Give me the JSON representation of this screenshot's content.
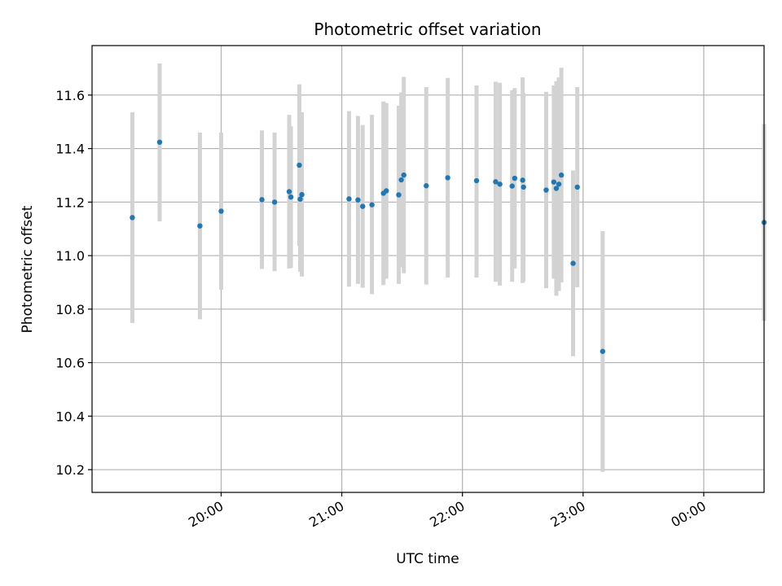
{
  "chart_data": {
    "type": "scatter",
    "title": "Photometric offset variation",
    "xlabel": "UTC time",
    "ylabel": "Photometric offset",
    "x_unit": "hours since 19:00 UTC",
    "xlim": [
      -0.07,
      5.5
    ],
    "ylim": [
      10.115,
      11.785
    ],
    "x_ticks": [
      {
        "value": 1.0,
        "label": "20:00"
      },
      {
        "value": 2.0,
        "label": "21:00"
      },
      {
        "value": 3.0,
        "label": "22:00"
      },
      {
        "value": 4.0,
        "label": "23:00"
      },
      {
        "value": 5.0,
        "label": "00:00"
      }
    ],
    "y_ticks": [
      {
        "value": 10.2,
        "label": "10.2"
      },
      {
        "value": 10.4,
        "label": "10.4"
      },
      {
        "value": 10.6,
        "label": "10.6"
      },
      {
        "value": 10.8,
        "label": "10.8"
      },
      {
        "value": 11.0,
        "label": "11.0"
      },
      {
        "value": 11.2,
        "label": "11.2"
      },
      {
        "value": 11.4,
        "label": "11.4"
      },
      {
        "value": 11.6,
        "label": "11.6"
      }
    ],
    "grid": true,
    "marker_color": "#1f77b4",
    "errorbar_color": "#d3d3d3",
    "points": [
      {
        "x": 0.264,
        "y": 11.142,
        "lo": 10.748,
        "hi": 11.536
      },
      {
        "x": 0.49,
        "y": 11.424,
        "lo": 11.128,
        "hi": 11.718
      },
      {
        "x": 0.824,
        "y": 11.111,
        "lo": 10.762,
        "hi": 11.46
      },
      {
        "x": 1.0,
        "y": 11.166,
        "lo": 10.872,
        "hi": 11.46
      },
      {
        "x": 1.338,
        "y": 11.209,
        "lo": 10.95,
        "hi": 11.468
      },
      {
        "x": 1.443,
        "y": 11.2,
        "lo": 10.942,
        "hi": 11.46
      },
      {
        "x": 1.564,
        "y": 11.239,
        "lo": 10.952,
        "hi": 11.526
      },
      {
        "x": 1.578,
        "y": 11.219,
        "lo": 10.954,
        "hi": 11.484
      },
      {
        "x": 1.648,
        "y": 11.338,
        "lo": 11.036,
        "hi": 11.64
      },
      {
        "x": 1.655,
        "y": 11.211,
        "lo": 10.94,
        "hi": 11.482
      },
      {
        "x": 1.669,
        "y": 11.228,
        "lo": 10.922,
        "hi": 11.536
      },
      {
        "x": 2.06,
        "y": 11.212,
        "lo": 10.884,
        "hi": 11.54
      },
      {
        "x": 2.134,
        "y": 11.208,
        "lo": 10.894,
        "hi": 11.522
      },
      {
        "x": 2.173,
        "y": 11.184,
        "lo": 10.88,
        "hi": 11.488
      },
      {
        "x": 2.25,
        "y": 11.19,
        "lo": 10.856,
        "hi": 11.526
      },
      {
        "x": 2.345,
        "y": 11.233,
        "lo": 10.89,
        "hi": 11.576
      },
      {
        "x": 2.369,
        "y": 11.242,
        "lo": 10.914,
        "hi": 11.57
      },
      {
        "x": 2.472,
        "y": 11.227,
        "lo": 10.894,
        "hi": 11.56
      },
      {
        "x": 2.493,
        "y": 11.283,
        "lo": 10.956,
        "hi": 11.61
      },
      {
        "x": 2.514,
        "y": 11.301,
        "lo": 10.934,
        "hi": 11.668
      },
      {
        "x": 2.7,
        "y": 11.261,
        "lo": 10.892,
        "hi": 11.63
      },
      {
        "x": 2.878,
        "y": 11.291,
        "lo": 10.918,
        "hi": 11.664
      },
      {
        "x": 3.117,
        "y": 11.28,
        "lo": 10.918,
        "hi": 11.636
      },
      {
        "x": 3.275,
        "y": 11.276,
        "lo": 10.902,
        "hi": 11.65
      },
      {
        "x": 3.31,
        "y": 11.267,
        "lo": 10.888,
        "hi": 11.646
      },
      {
        "x": 3.412,
        "y": 11.26,
        "lo": 10.902,
        "hi": 11.618
      },
      {
        "x": 3.433,
        "y": 11.289,
        "lo": 10.952,
        "hi": 11.626
      },
      {
        "x": 3.499,
        "y": 11.282,
        "lo": 10.898,
        "hi": 11.666
      },
      {
        "x": 3.506,
        "y": 11.256,
        "lo": 10.904,
        "hi": 11.608
      },
      {
        "x": 3.694,
        "y": 11.245,
        "lo": 10.878,
        "hi": 11.612
      },
      {
        "x": 3.757,
        "y": 11.275,
        "lo": 10.914,
        "hi": 11.636
      },
      {
        "x": 3.778,
        "y": 11.251,
        "lo": 10.85,
        "hi": 11.652
      },
      {
        "x": 3.799,
        "y": 11.267,
        "lo": 10.868,
        "hi": 11.666
      },
      {
        "x": 3.82,
        "y": 11.301,
        "lo": 10.9,
        "hi": 11.702
      },
      {
        "x": 3.917,
        "y": 10.971,
        "lo": 10.624,
        "hi": 11.318
      },
      {
        "x": 3.952,
        "y": 11.256,
        "lo": 10.882,
        "hi": 11.63
      },
      {
        "x": 4.162,
        "y": 10.642,
        "lo": 10.192,
        "hi": 11.092
      },
      {
        "x": 5.5,
        "y": 11.124,
        "lo": 10.756,
        "hi": 11.492
      }
    ]
  }
}
